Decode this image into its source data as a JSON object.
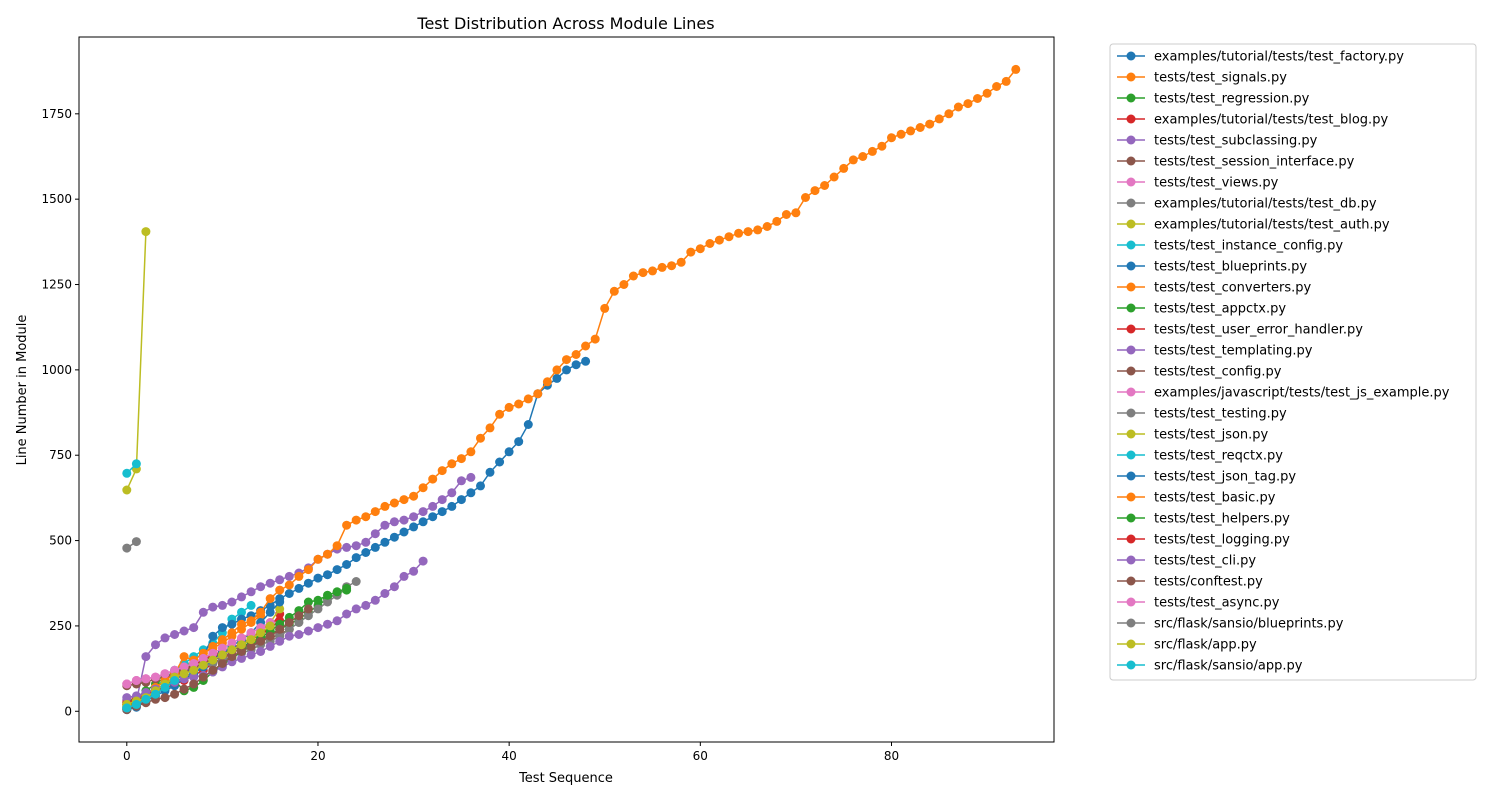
{
  "chart_data": {
    "type": "line",
    "title": "Test Distribution Across Module Lines",
    "xlabel": "Test Sequence",
    "ylabel": "Line Number in Module",
    "xlim": [
      -5,
      97
    ],
    "ylim": [
      -90,
      1975
    ],
    "xticks": [
      0,
      20,
      40,
      60,
      80
    ],
    "yticks": [
      0,
      250,
      500,
      750,
      1000,
      1250,
      1500,
      1750
    ],
    "grid": false,
    "legend_position": "outside-right",
    "series": [
      {
        "name": "examples/tutorial/tests/test_factory.py",
        "color": "#1f77b4",
        "values": [
          5,
          12
        ]
      },
      {
        "name": "tests/test_signals.py",
        "color": "#ff7f0e",
        "values": [
          20,
          30,
          50,
          70,
          90,
          110,
          130,
          150,
          170,
          185,
          200,
          220,
          240,
          260,
          280
        ]
      },
      {
        "name": "tests/test_regression.py",
        "color": "#2ca02c",
        "values": [
          10,
          25
        ]
      },
      {
        "name": "examples/tutorial/tests/test_blog.py",
        "color": "#d62728",
        "values": [
          30,
          40,
          48,
          55,
          65,
          80,
          90,
          105,
          120,
          140,
          155,
          170,
          185,
          200,
          220,
          245,
          285
        ]
      },
      {
        "name": "tests/test_subclassing.py",
        "color": "#9467bd",
        "values": [
          35
        ]
      },
      {
        "name": "tests/test_session_interface.py",
        "color": "#8c564b",
        "values": [
          20
        ]
      },
      {
        "name": "tests/test_views.py",
        "color": "#e377c2",
        "values": [
          80,
          90,
          95,
          100,
          110,
          120,
          130,
          140,
          150,
          160,
          170,
          180,
          195,
          210,
          230,
          245,
          260
        ]
      },
      {
        "name": "examples/tutorial/tests/test_db.py",
        "color": "#7f7f7f",
        "values": [
          478,
          497
        ]
      },
      {
        "name": "examples/tutorial/tests/test_auth.py",
        "color": "#bcbd22",
        "values": [
          20,
          35,
          50,
          65,
          80,
          95,
          110,
          125,
          140,
          155,
          170,
          185,
          200,
          215,
          235,
          260,
          300
        ]
      },
      {
        "name": "tests/test_instance_config.py",
        "color": "#17becf",
        "values": [
          10,
          30,
          50,
          70,
          95,
          120,
          140,
          160,
          180,
          200,
          230,
          270,
          290,
          310
        ]
      },
      {
        "name": "tests/test_blueprints.py",
        "color": "#1f77b4",
        "values": [
          10,
          25,
          45,
          60,
          75,
          90,
          110,
          130,
          160,
          220,
          245,
          255,
          270,
          280,
          295,
          310,
          330,
          345,
          360,
          375,
          390,
          400,
          415,
          430,
          450,
          465,
          480,
          495,
          510,
          525,
          540,
          555,
          570,
          585,
          600,
          620,
          640,
          660,
          700,
          730,
          760,
          790,
          840,
          930,
          955,
          975,
          1000,
          1015,
          1025
        ]
      },
      {
        "name": "tests/test_converters.py",
        "color": "#ff7f0e",
        "values": [
          15,
          25
        ]
      },
      {
        "name": "tests/test_appctx.py",
        "color": "#2ca02c",
        "values": [
          25,
          40,
          60,
          80,
          100,
          115,
          125,
          135,
          150,
          160,
          170,
          180,
          190,
          200,
          210,
          225,
          240,
          255,
          270,
          290,
          310,
          330,
          345,
          355
        ]
      },
      {
        "name": "tests/test_user_error_handler.py",
        "color": "#d62728",
        "values": [
          20,
          35,
          50,
          60,
          80,
          100,
          120,
          135,
          150,
          165,
          175,
          185,
          195,
          210,
          225,
          245,
          265
        ]
      },
      {
        "name": "tests/test_templating.py",
        "color": "#9467bd",
        "values": [
          20,
          30,
          160,
          195,
          215,
          225,
          235,
          245,
          290,
          305,
          310,
          320,
          335,
          350,
          365,
          375,
          385,
          395,
          405,
          420,
          445,
          460,
          475,
          480,
          485,
          495,
          520,
          545,
          555,
          560,
          570,
          585,
          600,
          620,
          640,
          675,
          685
        ]
      },
      {
        "name": "tests/test_config.py",
        "color": "#8c564b",
        "values": [
          75,
          80,
          85,
          95,
          100,
          110,
          120,
          130,
          140,
          150,
          160,
          170,
          185,
          195,
          205,
          215,
          225,
          240
        ]
      },
      {
        "name": "examples/javascript/tests/test_js_example.py",
        "color": "#e377c2",
        "values": [
          80,
          90,
          95
        ]
      },
      {
        "name": "tests/test_testing.py",
        "color": "#7f7f7f",
        "values": [
          10,
          20,
          40,
          55,
          70,
          85,
          100,
          115,
          130,
          140,
          150,
          160,
          170,
          180,
          195,
          205,
          220,
          240,
          260,
          280,
          300,
          320,
          340,
          365,
          380
        ]
      },
      {
        "name": "tests/test_json.py",
        "color": "#bcbd22",
        "values": [
          648,
          710,
          1405
        ]
      },
      {
        "name": "tests/test_reqctx.py",
        "color": "#17becf",
        "values": [
          697,
          725
        ]
      },
      {
        "name": "tests/test_json_tag.py",
        "color": "#1f77b4",
        "values": [
          5,
          15,
          30,
          45,
          60,
          75,
          95,
          110,
          130,
          150,
          170,
          190,
          210,
          230,
          260,
          290,
          320
        ]
      },
      {
        "name": "tests/test_basic.py",
        "color": "#ff7f0e",
        "values": [
          20,
          30,
          50,
          70,
          90,
          110,
          160,
          150,
          170,
          190,
          210,
          230,
          255,
          265,
          290,
          330,
          355,
          370,
          395,
          415,
          445,
          460,
          485,
          545,
          560,
          570,
          585,
          600,
          610,
          620,
          630,
          655,
          680,
          705,
          725,
          740,
          760,
          800,
          830,
          870,
          890,
          900,
          915,
          930,
          965,
          1000,
          1030,
          1045,
          1070,
          1090,
          1180,
          1230,
          1250,
          1275,
          1285,
          1290,
          1300,
          1305,
          1315,
          1345,
          1355,
          1370,
          1380,
          1390,
          1400,
          1405,
          1410,
          1420,
          1435,
          1455,
          1460,
          1505,
          1525,
          1540,
          1565,
          1590,
          1615,
          1625,
          1640,
          1655,
          1680,
          1690,
          1700,
          1710,
          1720,
          1735,
          1750,
          1770,
          1780,
          1795,
          1810,
          1830,
          1845,
          1880
        ]
      },
      {
        "name": "tests/test_helpers.py",
        "color": "#2ca02c",
        "values": [
          15,
          30,
          45,
          60,
          75,
          90,
          60,
          70,
          90,
          115,
          135,
          155,
          175,
          195,
          215,
          235,
          255,
          275,
          295,
          320,
          325,
          340,
          350,
          360
        ]
      },
      {
        "name": "tests/test_logging.py",
        "color": "#d62728",
        "values": [
          25,
          35,
          50,
          60,
          75,
          85
        ]
      },
      {
        "name": "tests/test_cli.py",
        "color": "#9467bd",
        "values": [
          40,
          45,
          55,
          65,
          75,
          85,
          95,
          100,
          105,
          115,
          130,
          145,
          155,
          165,
          175,
          190,
          205,
          220,
          225,
          235,
          245,
          255,
          265,
          285,
          300,
          310,
          325,
          345,
          365,
          395,
          410,
          440
        ]
      },
      {
        "name": "tests/conftest.py",
        "color": "#8c564b",
        "values": [
          5,
          15,
          25,
          35,
          40,
          50,
          65,
          80,
          100,
          120,
          140,
          160,
          175,
          190,
          205,
          220,
          240,
          260,
          280,
          300
        ]
      },
      {
        "name": "tests/test_async.py",
        "color": "#e377c2",
        "values": [
          80,
          90,
          95,
          100,
          110,
          120,
          130,
          140,
          155,
          170,
          185,
          200,
          215,
          230,
          245,
          260
        ]
      },
      {
        "name": "src/flask/sansio/blueprints.py",
        "color": "#7f7f7f",
        "values": [
          10,
          20,
          40,
          60,
          80,
          100
        ]
      },
      {
        "name": "src/flask/app.py",
        "color": "#bcbd22",
        "values": [
          20,
          30,
          40,
          60,
          80,
          100,
          110,
          120,
          135,
          150,
          165,
          180,
          195,
          210,
          230,
          250
        ]
      },
      {
        "name": "src/flask/sansio/app.py",
        "color": "#17becf",
        "values": [
          10,
          20,
          35,
          50,
          70,
          90
        ]
      }
    ]
  }
}
